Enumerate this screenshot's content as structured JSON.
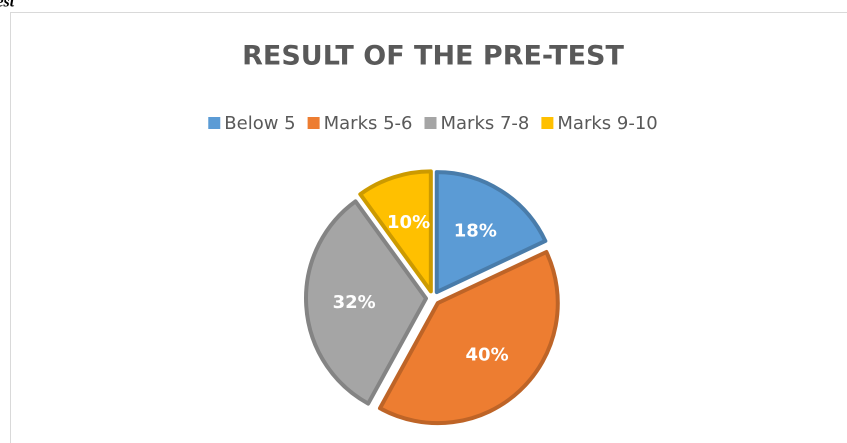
{
  "caption": "test",
  "chart_data": {
    "type": "pie",
    "title": "RESULT OF THE PRE-TEST",
    "categories": [
      "Below 5",
      "Marks 5-6",
      "Marks 7-8",
      "Marks 9-10"
    ],
    "values": [
      18,
      40,
      32,
      10
    ],
    "value_labels": [
      "18%",
      "40%",
      "32%",
      "10%"
    ],
    "colors": [
      "#5b9bd5",
      "#ed7d31",
      "#a5a5a5",
      "#ffc000"
    ],
    "legend": "top"
  }
}
